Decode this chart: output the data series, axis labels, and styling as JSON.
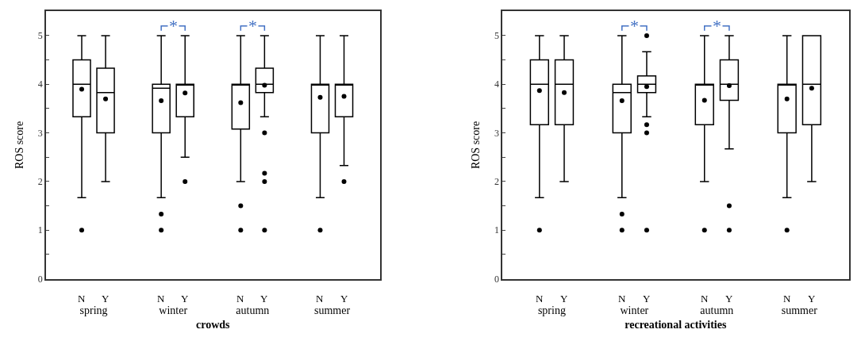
{
  "chart_data": [
    {
      "type": "box",
      "xlabel": "crowds",
      "ylabel": "ROS score",
      "categories": [
        "spring",
        "winter",
        "autumn",
        "summer"
      ],
      "ylim": [
        0,
        5.5
      ],
      "yticks": [
        0,
        {
          "value": 0.5,
          "label": null
        },
        1,
        {
          "value": 1.5,
          "label": null
        },
        2,
        {
          "value": 2.5,
          "label": null
        },
        3,
        {
          "value": 3.5,
          "label": null
        },
        4,
        {
          "value": 4.5,
          "label": null
        },
        5
      ],
      "marker": "circle",
      "annotations": [
        {
          "text": "*",
          "x": "winter",
          "y": 5.2
        },
        {
          "text": "*",
          "x": "autumn",
          "y": 5.2
        }
      ],
      "series": [
        {
          "name": "N",
          "color": "#000000",
          "boxes": [
            {
              "low": 1.67,
              "q1": 3.33,
              "median": 4,
              "q3": 4.5,
              "high": 5,
              "mean": 3.9,
              "outliers": [
                1
              ]
            },
            {
              "low": 1.67,
              "q1": 3,
              "median": 3.92,
              "q3": 4,
              "high": 5,
              "mean": 3.66,
              "outliers": [
                1,
                1.33
              ]
            },
            {
              "low": 2,
              "q1": 3.08,
              "median": 4,
              "q3": 4,
              "high": 5,
              "mean": 3.62,
              "outliers": [
                1,
                1.5
              ]
            },
            {
              "low": 1.67,
              "q1": 3,
              "median": 4,
              "q3": 4,
              "high": 5,
              "mean": 3.73,
              "outliers": [
                1
              ]
            }
          ]
        },
        {
          "name": "Y",
          "color": "#000000",
          "boxes": [
            {
              "low": 2,
              "q1": 3,
              "median": 3.83,
              "q3": 4.33,
              "high": 5,
              "mean": 3.7
            },
            {
              "low": 2.5,
              "q1": 3.33,
              "median": 4,
              "q3": 4,
              "high": 5,
              "mean": 3.82,
              "outliers": [
                2
              ]
            },
            {
              "low": 3.33,
              "q1": 3.83,
              "median": 4,
              "q3": 4.33,
              "high": 5,
              "mean": 3.98,
              "outliers": [
                1,
                2,
                2.17,
                3
              ]
            },
            {
              "low": 2.33,
              "q1": 3.33,
              "median": 4,
              "q3": 4,
              "high": 5,
              "mean": 3.75,
              "outliers": [
                2
              ]
            }
          ]
        }
      ]
    },
    {
      "type": "box",
      "xlabel": "recreational activities",
      "ylabel": "ROS score",
      "categories": [
        "spring",
        "winter",
        "autumn",
        "summer"
      ],
      "ylim": [
        0,
        5.5
      ],
      "yticks": [
        0,
        {
          "value": 0.5,
          "label": null
        },
        1,
        {
          "value": 1.5,
          "label": null
        },
        2,
        {
          "value": 2.5,
          "label": null
        },
        3,
        {
          "value": 3.5,
          "label": null
        },
        4,
        {
          "value": 4.5,
          "label": null
        },
        5
      ],
      "marker": "circle",
      "annotations": [
        {
          "text": "*",
          "x": "winter",
          "y": 5.2
        },
        {
          "text": "*",
          "x": "autumn",
          "y": 5.2
        }
      ],
      "series": [
        {
          "name": "N",
          "color": "#000000",
          "boxes": [
            {
              "low": 1.67,
              "q1": 3.17,
              "median": 4,
              "q3": 4.5,
              "high": 5,
              "mean": 3.87,
              "outliers": [
                1
              ]
            },
            {
              "low": 1.67,
              "q1": 3,
              "median": 3.83,
              "q3": 4,
              "high": 5,
              "mean": 3.66,
              "outliers": [
                1,
                1.33
              ]
            },
            {
              "low": 2,
              "q1": 3.17,
              "median": 4,
              "q3": 4,
              "high": 5,
              "mean": 3.67,
              "outliers": [
                1
              ]
            },
            {
              "low": 1.67,
              "q1": 3,
              "median": 4,
              "q3": 4,
              "high": 5,
              "mean": 3.7,
              "outliers": [
                1
              ]
            }
          ]
        },
        {
          "name": "Y",
          "color": "#000000",
          "boxes": [
            {
              "low": 2,
              "q1": 3.17,
              "median": 4,
              "q3": 4.5,
              "high": 5,
              "mean": 3.83
            },
            {
              "low": 3.33,
              "q1": 3.83,
              "median": 4,
              "q3": 4.17,
              "high": 4.67,
              "mean": 3.95,
              "outliers": [
                1,
                3,
                3.17,
                5
              ]
            },
            {
              "low": 2.67,
              "q1": 3.67,
              "median": 4,
              "q3": 4.5,
              "high": 5,
              "mean": 3.97,
              "outliers": [
                1,
                1.5
              ]
            },
            {
              "low": 2,
              "q1": 3.17,
              "median": 4,
              "q3": 5,
              "high": 5,
              "mean": 3.92
            }
          ]
        }
      ]
    }
  ]
}
